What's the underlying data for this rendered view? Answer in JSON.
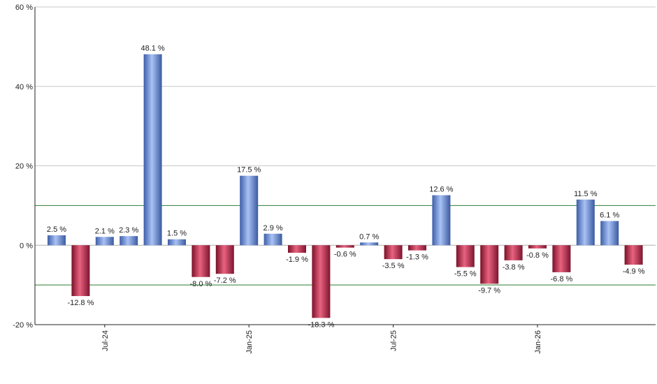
{
  "chart_data": {
    "type": "bar",
    "y_unit_suffix": " %",
    "ylim": [
      -20,
      60
    ],
    "y_ticks": [
      -20,
      0,
      20,
      40,
      60
    ],
    "y_tick_labels": [
      "-20 %",
      "0 %",
      "20 %",
      "40 %",
      "60 %"
    ],
    "x_tick_labels": [
      {
        "label": "Jul-24",
        "index": 2
      },
      {
        "label": "Jan-25",
        "index": 8
      },
      {
        "label": "Jul-25",
        "index": 14
      },
      {
        "label": "Jan-26",
        "index": 20
      }
    ],
    "reference_lines": [
      10,
      -10
    ],
    "grid": true,
    "values": [
      2.5,
      -12.8,
      2.1,
      2.3,
      48.1,
      1.5,
      -8.0,
      -7.2,
      17.5,
      2.9,
      -1.9,
      -18.3,
      -0.6,
      0.7,
      -3.5,
      -1.3,
      12.6,
      -5.5,
      -9.7,
      -3.8,
      -0.8,
      -6.8,
      11.5,
      6.1,
      -4.9
    ],
    "data_labels": [
      "2.5 %",
      "-12.8 %",
      "2.1 %",
      "2.3 %",
      "48.1 %",
      "1.5 %",
      "-8.0 %",
      "-7.2 %",
      "17.5 %",
      "2.9 %",
      "-1.9 %",
      "-18.3 %",
      "-0.6 %",
      "0.7 %",
      "-3.5 %",
      "-1.3 %",
      "12.6 %",
      "-5.5 %",
      "-9.7 %",
      "-3.8 %",
      "-0.8 %",
      "-6.8 %",
      "11.5 %",
      "6.1 %",
      "-4.9 %"
    ],
    "colors": {
      "positive": "#7f9fe6",
      "negative": "#c23050",
      "grid": "#c8c8c8",
      "reference": "#2e7d32",
      "axis": "#222222"
    }
  }
}
